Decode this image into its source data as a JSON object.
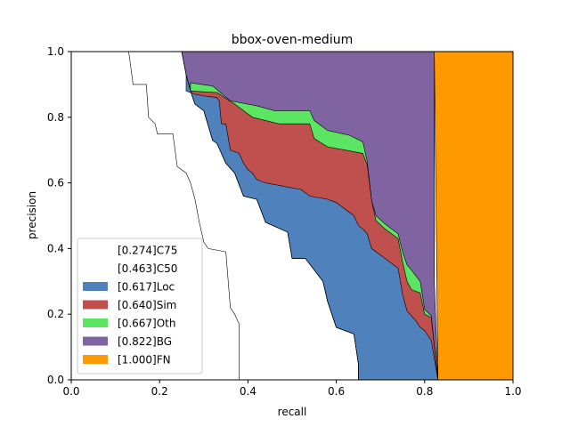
{
  "chart_data": {
    "type": "area",
    "title": "bbox-oven-medium",
    "xlabel": "recall",
    "ylabel": "precision",
    "xlim": [
      0.0,
      1.0
    ],
    "ylim": [
      0.0,
      1.0
    ],
    "xticks": [
      "0.0",
      "0.2",
      "0.4",
      "0.6",
      "0.8",
      "1.0"
    ],
    "yticks": [
      "0.0",
      "0.2",
      "0.4",
      "0.6",
      "0.8",
      "1.0"
    ],
    "legend_position": "lower-left",
    "series": [
      {
        "name": "[1.000]FN",
        "color": "#ff9900",
        "points": [
          [
            0.822,
            1.0
          ],
          [
            0.83,
            0.0
          ],
          [
            1.0,
            0.0
          ],
          [
            1.0,
            1.0
          ]
        ]
      },
      {
        "name": "[0.822]BG",
        "color": "#8064a2",
        "points": [
          [
            0.265,
            1.0
          ],
          [
            0.822,
            1.0
          ],
          [
            0.822,
            0.3
          ],
          [
            0.83,
            0.0
          ],
          [
            0.65,
            0.0
          ],
          [
            0.65,
            0.05
          ],
          [
            0.64,
            0.14
          ],
          [
            0.6,
            0.16
          ],
          [
            0.58,
            0.24
          ],
          [
            0.57,
            0.3
          ],
          [
            0.53,
            0.37
          ],
          [
            0.5,
            0.37
          ],
          [
            0.49,
            0.45
          ],
          [
            0.44,
            0.48
          ],
          [
            0.42,
            0.55
          ],
          [
            0.39,
            0.56
          ],
          [
            0.37,
            0.63
          ],
          [
            0.35,
            0.66
          ],
          [
            0.33,
            0.72
          ],
          [
            0.32,
            0.73
          ],
          [
            0.3,
            0.82
          ],
          [
            0.28,
            0.84
          ],
          [
            0.27,
            0.88
          ],
          [
            0.26,
            0.93
          ],
          [
            0.25,
            1.0
          ]
        ]
      },
      {
        "name": "[0.667]Oth",
        "color": "#5be562",
        "points": [
          [
            0.27,
            0.905
          ],
          [
            0.32,
            0.895
          ],
          [
            0.36,
            0.85
          ],
          [
            0.42,
            0.835
          ],
          [
            0.46,
            0.82
          ],
          [
            0.54,
            0.82
          ],
          [
            0.55,
            0.79
          ],
          [
            0.58,
            0.76
          ],
          [
            0.63,
            0.745
          ],
          [
            0.66,
            0.725
          ],
          [
            0.67,
            0.665
          ],
          [
            0.68,
            0.545
          ],
          [
            0.69,
            0.5
          ],
          [
            0.71,
            0.475
          ],
          [
            0.74,
            0.445
          ],
          [
            0.75,
            0.39
          ],
          [
            0.76,
            0.35
          ],
          [
            0.77,
            0.335
          ],
          [
            0.79,
            0.3
          ],
          [
            0.8,
            0.215
          ],
          [
            0.815,
            0.195
          ],
          [
            0.83,
            0.0
          ],
          [
            0.65,
            0.0
          ],
          [
            0.65,
            0.05
          ],
          [
            0.64,
            0.14
          ],
          [
            0.6,
            0.16
          ],
          [
            0.58,
            0.24
          ],
          [
            0.57,
            0.3
          ],
          [
            0.53,
            0.37
          ],
          [
            0.5,
            0.37
          ],
          [
            0.49,
            0.45
          ],
          [
            0.44,
            0.48
          ],
          [
            0.42,
            0.55
          ],
          [
            0.39,
            0.56
          ],
          [
            0.37,
            0.63
          ],
          [
            0.35,
            0.66
          ],
          [
            0.33,
            0.72
          ],
          [
            0.32,
            0.73
          ],
          [
            0.3,
            0.82
          ],
          [
            0.28,
            0.84
          ],
          [
            0.27,
            0.88
          ]
        ]
      },
      {
        "name": "[0.640]Sim",
        "color": "#c0504d",
        "points": [
          [
            0.27,
            0.88
          ],
          [
            0.33,
            0.875
          ],
          [
            0.37,
            0.84
          ],
          [
            0.41,
            0.8
          ],
          [
            0.47,
            0.78
          ],
          [
            0.54,
            0.78
          ],
          [
            0.55,
            0.735
          ],
          [
            0.58,
            0.71
          ],
          [
            0.62,
            0.7
          ],
          [
            0.66,
            0.69
          ],
          [
            0.67,
            0.655
          ],
          [
            0.68,
            0.545
          ],
          [
            0.69,
            0.485
          ],
          [
            0.71,
            0.46
          ],
          [
            0.74,
            0.43
          ],
          [
            0.75,
            0.36
          ],
          [
            0.76,
            0.3
          ],
          [
            0.77,
            0.275
          ],
          [
            0.79,
            0.265
          ],
          [
            0.8,
            0.2
          ],
          [
            0.815,
            0.19
          ],
          [
            0.83,
            0.0
          ],
          [
            0.65,
            0.0
          ],
          [
            0.65,
            0.05
          ],
          [
            0.64,
            0.14
          ],
          [
            0.6,
            0.16
          ],
          [
            0.58,
            0.24
          ],
          [
            0.57,
            0.3
          ],
          [
            0.53,
            0.37
          ],
          [
            0.5,
            0.37
          ],
          [
            0.49,
            0.45
          ],
          [
            0.44,
            0.48
          ],
          [
            0.42,
            0.55
          ],
          [
            0.39,
            0.56
          ],
          [
            0.37,
            0.63
          ],
          [
            0.35,
            0.66
          ],
          [
            0.33,
            0.72
          ],
          [
            0.32,
            0.73
          ],
          [
            0.3,
            0.82
          ],
          [
            0.28,
            0.84
          ],
          [
            0.27,
            0.88
          ]
        ]
      },
      {
        "name": "[0.617]Loc",
        "color": "#4f81bd",
        "points": [
          [
            0.25,
            1.0
          ],
          [
            0.26,
            0.93
          ],
          [
            0.26,
            0.88
          ],
          [
            0.28,
            0.87
          ],
          [
            0.3,
            0.865
          ],
          [
            0.33,
            0.86
          ],
          [
            0.335,
            0.85
          ],
          [
            0.34,
            0.78
          ],
          [
            0.35,
            0.78
          ],
          [
            0.36,
            0.7
          ],
          [
            0.38,
            0.69
          ],
          [
            0.39,
            0.66
          ],
          [
            0.4,
            0.64
          ],
          [
            0.41,
            0.63
          ],
          [
            0.42,
            0.61
          ],
          [
            0.44,
            0.6
          ],
          [
            0.48,
            0.59
          ],
          [
            0.52,
            0.58
          ],
          [
            0.54,
            0.56
          ],
          [
            0.58,
            0.55
          ],
          [
            0.6,
            0.54
          ],
          [
            0.62,
            0.52
          ],
          [
            0.64,
            0.5
          ],
          [
            0.65,
            0.47
          ],
          [
            0.66,
            0.46
          ],
          [
            0.67,
            0.445
          ],
          [
            0.68,
            0.4
          ],
          [
            0.7,
            0.38
          ],
          [
            0.74,
            0.34
          ],
          [
            0.75,
            0.26
          ],
          [
            0.76,
            0.21
          ],
          [
            0.78,
            0.18
          ],
          [
            0.79,
            0.16
          ],
          [
            0.8,
            0.15
          ],
          [
            0.815,
            0.12
          ],
          [
            0.83,
            0.0
          ],
          [
            0.65,
            0.0
          ],
          [
            0.65,
            0.05
          ],
          [
            0.64,
            0.14
          ],
          [
            0.6,
            0.16
          ],
          [
            0.58,
            0.24
          ],
          [
            0.57,
            0.3
          ],
          [
            0.53,
            0.37
          ],
          [
            0.5,
            0.37
          ],
          [
            0.49,
            0.45
          ],
          [
            0.44,
            0.48
          ],
          [
            0.42,
            0.55
          ],
          [
            0.39,
            0.56
          ],
          [
            0.37,
            0.63
          ],
          [
            0.35,
            0.66
          ],
          [
            0.33,
            0.72
          ],
          [
            0.32,
            0.73
          ],
          [
            0.3,
            0.82
          ],
          [
            0.28,
            0.84
          ],
          [
            0.27,
            0.88
          ],
          [
            0.26,
            0.93
          ]
        ]
      }
    ],
    "lines": [
      {
        "name": "[0.463]C50",
        "color": "#ffffff",
        "points": [
          [
            0.25,
            1.0
          ],
          [
            0.26,
            0.93
          ],
          [
            0.27,
            0.88
          ],
          [
            0.28,
            0.84
          ],
          [
            0.3,
            0.82
          ],
          [
            0.32,
            0.73
          ],
          [
            0.33,
            0.72
          ],
          [
            0.35,
            0.66
          ],
          [
            0.37,
            0.63
          ],
          [
            0.39,
            0.56
          ],
          [
            0.42,
            0.55
          ],
          [
            0.44,
            0.48
          ],
          [
            0.49,
            0.45
          ],
          [
            0.5,
            0.37
          ],
          [
            0.53,
            0.37
          ],
          [
            0.57,
            0.3
          ],
          [
            0.58,
            0.24
          ],
          [
            0.6,
            0.16
          ],
          [
            0.64,
            0.14
          ],
          [
            0.65,
            0.05
          ],
          [
            0.65,
            0.0
          ]
        ]
      },
      {
        "name": "[0.274]C75",
        "color": "#ffffff",
        "points": [
          [
            0.13,
            1.0
          ],
          [
            0.14,
            0.9
          ],
          [
            0.17,
            0.9
          ],
          [
            0.175,
            0.8
          ],
          [
            0.19,
            0.78
          ],
          [
            0.195,
            0.75
          ],
          [
            0.23,
            0.75
          ],
          [
            0.24,
            0.65
          ],
          [
            0.26,
            0.63
          ],
          [
            0.27,
            0.6
          ],
          [
            0.28,
            0.55
          ],
          [
            0.29,
            0.48
          ],
          [
            0.3,
            0.42
          ],
          [
            0.31,
            0.4
          ],
          [
            0.35,
            0.39
          ],
          [
            0.36,
            0.22
          ],
          [
            0.37,
            0.2
          ],
          [
            0.38,
            0.17
          ],
          [
            0.38,
            0.0
          ]
        ]
      }
    ],
    "legend": [
      {
        "label": "[0.274]C75",
        "color": "#ffffff"
      },
      {
        "label": "[0.463]C50",
        "color": "#ffffff"
      },
      {
        "label": "[0.617]Loc",
        "color": "#4f81bd"
      },
      {
        "label": "[0.640]Sim",
        "color": "#c0504d"
      },
      {
        "label": "[0.667]Oth",
        "color": "#5be562"
      },
      {
        "label": "[0.822]BG",
        "color": "#8064a2"
      },
      {
        "label": "[1.000]FN",
        "color": "#ff9900"
      }
    ]
  }
}
